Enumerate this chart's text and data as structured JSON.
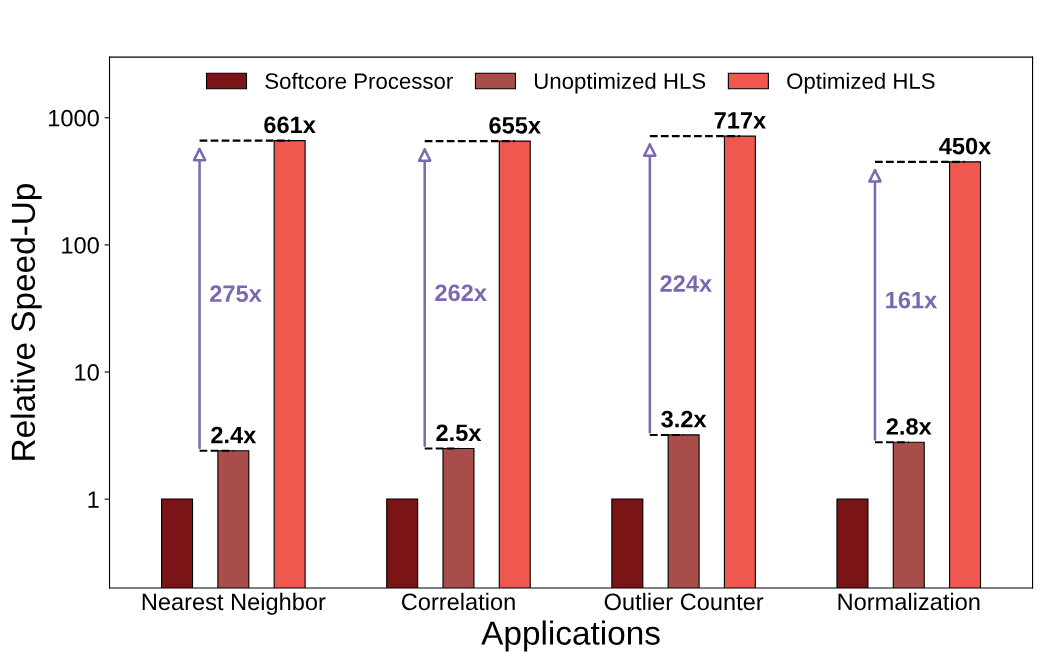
{
  "chart_data": {
    "type": "bar",
    "xlabel": "Applications",
    "ylabel": "Relative Speed-Up",
    "categories": [
      "Nearest Neighbor",
      "Correlation",
      "Outlier Counter",
      "Normalization"
    ],
    "series": [
      {
        "name": "Softcore Processor",
        "color": "#7a1416",
        "values": [
          1,
          1,
          1,
          1
        ]
      },
      {
        "name": "Unoptimized HLS",
        "color": "#a84d4a",
        "values": [
          2.4,
          2.5,
          3.2,
          2.8
        ],
        "value_labels": [
          "2.4x",
          "2.5x",
          "3.2x",
          "2.8x"
        ]
      },
      {
        "name": "Optimized HLS",
        "color": "#f0574f",
        "values": [
          661,
          655,
          717,
          450
        ],
        "value_labels": [
          "661x",
          "655x",
          "717x",
          "450x"
        ]
      }
    ],
    "log": true,
    "ylim": [
      0.2,
      3000
    ],
    "yticks": [
      1,
      10,
      100,
      1000
    ],
    "grid": false,
    "legend": "top",
    "annotations": [
      "275x",
      "262x",
      "224x",
      "161x"
    ]
  }
}
